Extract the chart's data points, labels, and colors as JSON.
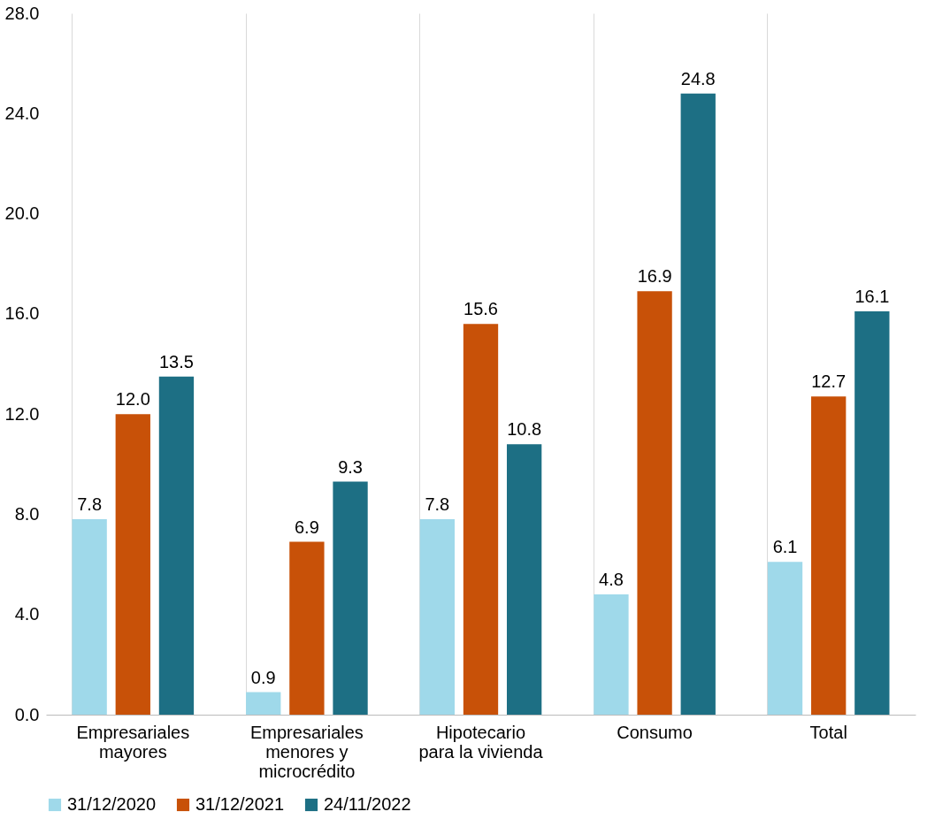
{
  "chart_data": {
    "type": "bar",
    "categories": [
      "Empresariales\nmayores",
      "Empresariales\nmenores y\nmicrocrédito",
      "Hipotecario\npara la vivienda",
      "Consumo",
      "Total"
    ],
    "series": [
      {
        "name": "31/12/2020",
        "color": "#9fd9ea",
        "values": [
          7.8,
          0.9,
          7.8,
          4.8,
          6.1
        ],
        "value_labels": [
          "7.8",
          "0.9",
          "7.8",
          "4.8",
          "6.1"
        ]
      },
      {
        "name": "31/12/2021",
        "color": "#c85108",
        "values": [
          12.0,
          6.9,
          15.6,
          16.9,
          12.7
        ],
        "value_labels": [
          "12.0",
          "6.9",
          "15.6",
          "16.9",
          "12.7"
        ]
      },
      {
        "name": "24/11/2022",
        "color": "#1d6f84",
        "values": [
          13.5,
          9.3,
          10.8,
          24.8,
          16.1
        ],
        "value_labels": [
          "13.5",
          "9.3",
          "10.8",
          "24.8",
          "16.1"
        ]
      }
    ],
    "ylim": [
      0,
      28
    ],
    "yticks": [
      {
        "value": 0,
        "label": "0.0"
      },
      {
        "value": 4,
        "label": "4.0"
      },
      {
        "value": 8,
        "label": "8.0"
      },
      {
        "value": 12,
        "label": "12.0"
      },
      {
        "value": 16,
        "label": "16.0"
      },
      {
        "value": 20,
        "label": "20.0"
      },
      {
        "value": 24,
        "label": "24.0"
      },
      {
        "value": 28,
        "label": "28.0"
      }
    ],
    "grid": "x",
    "legend": "bottom"
  }
}
